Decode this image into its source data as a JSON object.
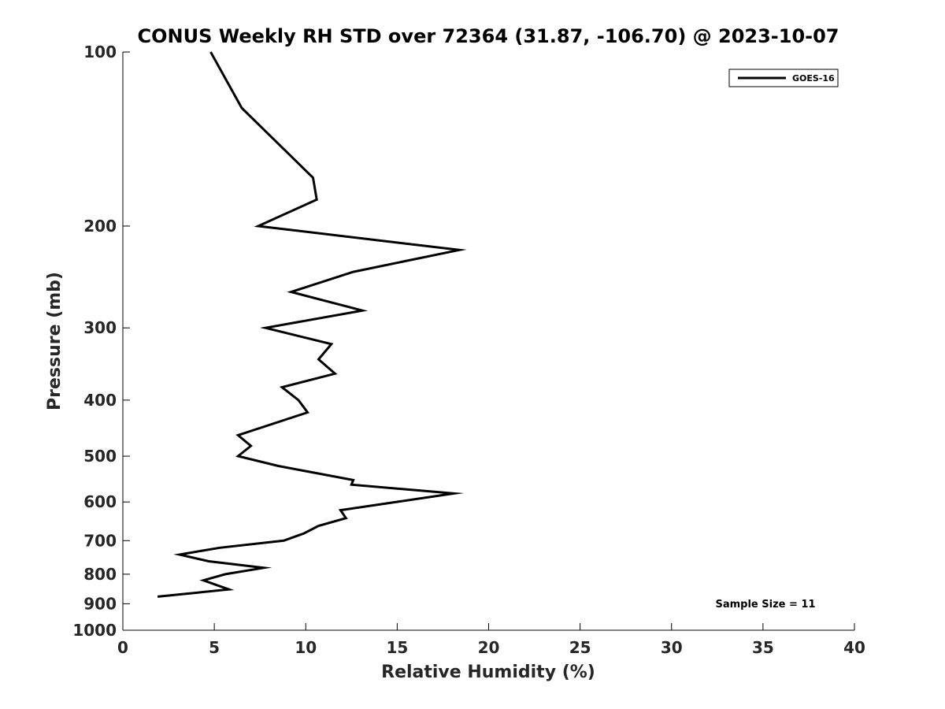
{
  "chart_data": {
    "type": "line",
    "title": "CONUS Weekly RH STD over 72364 (31.87, -106.70) @ 2023-10-07",
    "xlabel": "Relative Humidity (%)",
    "ylabel": "Pressure (mb)",
    "xlim": [
      0,
      40
    ],
    "ylim": [
      100,
      1000
    ],
    "y_scale": "log",
    "y_reversed": true,
    "grid": false,
    "legend_position": "top-right",
    "x_ticks": [
      0,
      5,
      10,
      15,
      20,
      25,
      30,
      35,
      40
    ],
    "y_ticks": [
      100,
      200,
      300,
      400,
      500,
      600,
      700,
      800,
      900,
      1000
    ],
    "series": [
      {
        "name": "GOES-16",
        "color": "#000000",
        "points": [
          {
            "x": 4.8,
            "y": 100
          },
          {
            "x": 6.5,
            "y": 125
          },
          {
            "x": 10.4,
            "y": 165
          },
          {
            "x": 10.6,
            "y": 180
          },
          {
            "x": 7.4,
            "y": 200
          },
          {
            "x": 18.4,
            "y": 220
          },
          {
            "x": 12.6,
            "y": 240
          },
          {
            "x": 9.2,
            "y": 260
          },
          {
            "x": 13.1,
            "y": 280
          },
          {
            "x": 7.8,
            "y": 300
          },
          {
            "x": 11.4,
            "y": 320
          },
          {
            "x": 10.7,
            "y": 340
          },
          {
            "x": 11.6,
            "y": 360
          },
          {
            "x": 8.7,
            "y": 380
          },
          {
            "x": 9.6,
            "y": 400
          },
          {
            "x": 10.1,
            "y": 420
          },
          {
            "x": 6.3,
            "y": 460
          },
          {
            "x": 7.0,
            "y": 480
          },
          {
            "x": 6.3,
            "y": 500
          },
          {
            "x": 8.5,
            "y": 520
          },
          {
            "x": 12.6,
            "y": 550
          },
          {
            "x": 12.5,
            "y": 560
          },
          {
            "x": 18.1,
            "y": 580
          },
          {
            "x": 11.9,
            "y": 620
          },
          {
            "x": 12.2,
            "y": 640
          },
          {
            "x": 10.7,
            "y": 660
          },
          {
            "x": 9.9,
            "y": 680
          },
          {
            "x": 8.8,
            "y": 700
          },
          {
            "x": 5.3,
            "y": 720
          },
          {
            "x": 3.1,
            "y": 740
          },
          {
            "x": 4.7,
            "y": 760
          },
          {
            "x": 7.7,
            "y": 780
          },
          {
            "x": 5.6,
            "y": 800
          },
          {
            "x": 4.4,
            "y": 820
          },
          {
            "x": 5.8,
            "y": 850
          },
          {
            "x": 1.9,
            "y": 875
          }
        ]
      }
    ],
    "annotations": [
      {
        "text": "Sample Size = 11",
        "position": "bottom-right"
      }
    ]
  }
}
